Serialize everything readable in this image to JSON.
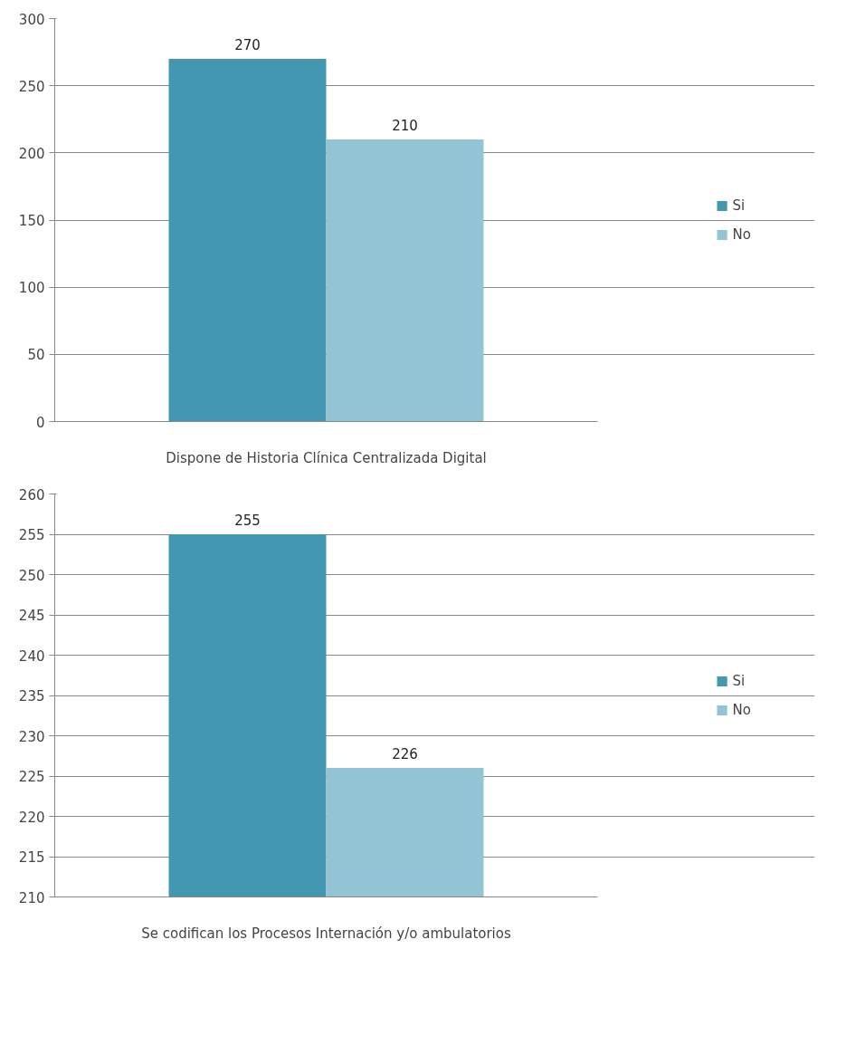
{
  "chart_data": [
    {
      "type": "bar",
      "categories": [
        "Dispone de Historia Clínica Centralizada Digital"
      ],
      "series": [
        {
          "name": "Si",
          "color": "#4397b0",
          "values": [
            270
          ]
        },
        {
          "name": "No",
          "color": "#93c4d4",
          "values": [
            210
          ]
        }
      ],
      "ylim": [
        0,
        300
      ],
      "yticks": [
        0,
        50,
        100,
        150,
        200,
        250,
        300
      ],
      "grid": "y",
      "legend": "right",
      "data_labels": true
    },
    {
      "type": "bar",
      "categories": [
        "Se codifican los Procesos Internación y/o ambulatorios"
      ],
      "series": [
        {
          "name": "Si",
          "color": "#4397b0",
          "values": [
            255
          ]
        },
        {
          "name": "No",
          "color": "#93c4d4",
          "values": [
            226
          ]
        }
      ],
      "ylim": [
        210,
        260
      ],
      "yticks": [
        210,
        215,
        220,
        225,
        230,
        235,
        240,
        245,
        250,
        255,
        260
      ],
      "grid": "y",
      "legend": "right",
      "data_labels": true
    }
  ]
}
